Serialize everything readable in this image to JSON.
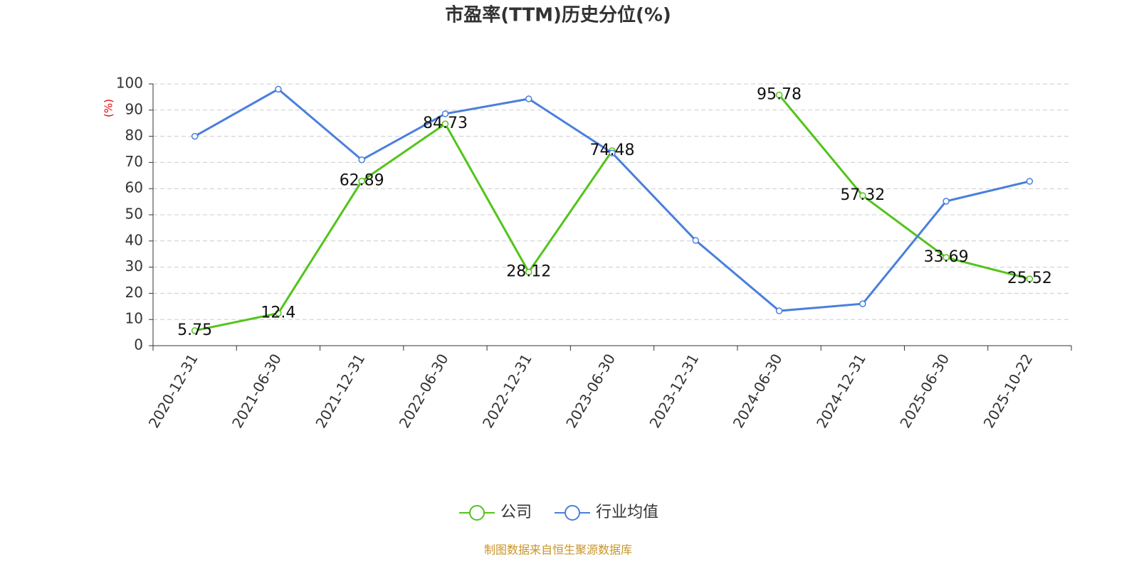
{
  "chart_data": {
    "type": "line",
    "title": "市盈率(TTM)历史分位(%)",
    "y_label": "(%)",
    "categories": [
      "2020-12-31",
      "2021-06-30",
      "2021-12-31",
      "2022-06-30",
      "2022-12-31",
      "2023-06-30",
      "2023-12-31",
      "2024-06-30",
      "2024-12-31",
      "2025-06-30",
      "2025-10-22"
    ],
    "series": [
      {
        "name": "公司",
        "color": "#52c41a",
        "values": [
          5.75,
          12.4,
          62.89,
          84.73,
          28.12,
          74.48,
          null,
          95.78,
          57.32,
          33.69,
          25.52
        ],
        "data_labels": true
      },
      {
        "name": "行业均值",
        "color": "#4a7fdc",
        "values": [
          80,
          98,
          71,
          88.6,
          94.3,
          73.6,
          40.2,
          13.3,
          16,
          55.2,
          62.8
        ],
        "data_labels": false
      }
    ],
    "ylim": [
      0,
      100
    ],
    "yticks": [
      0,
      10,
      20,
      30,
      40,
      50,
      60,
      70,
      80,
      90,
      100
    ],
    "grid": true,
    "legend": "bottom",
    "source": "制图数据来自恒生聚源数据库"
  }
}
